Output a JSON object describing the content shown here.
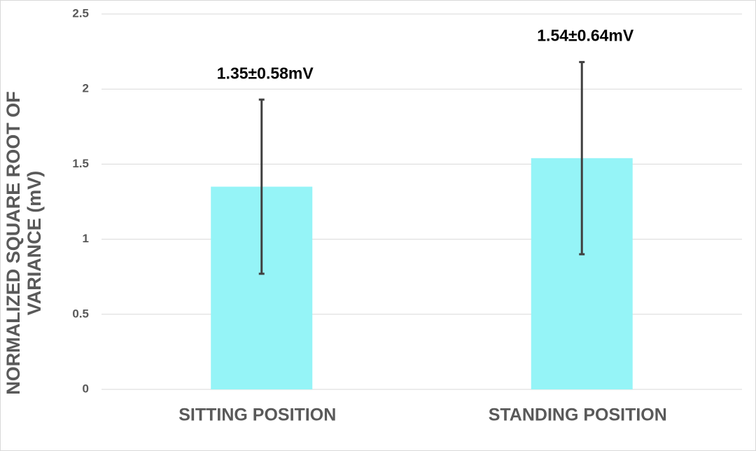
{
  "chart_data": {
    "type": "bar",
    "y_label": "NORMALIZED SQUARE ROOT OF VARIANCE (mV)",
    "categories": [
      "SITTING POSITION",
      "STANDING POSITION"
    ],
    "values": [
      1.35,
      1.54
    ],
    "errors": [
      0.58,
      0.64
    ],
    "value_labels": [
      "1.35±0.58mV",
      "1.54±0.64mV"
    ],
    "color": "#95f4f7",
    "error_color": "#404040",
    "ylim": [
      0,
      2.5
    ],
    "yticks": [
      0,
      0.5,
      1,
      1.5,
      2,
      2.5
    ],
    "grid": true
  }
}
